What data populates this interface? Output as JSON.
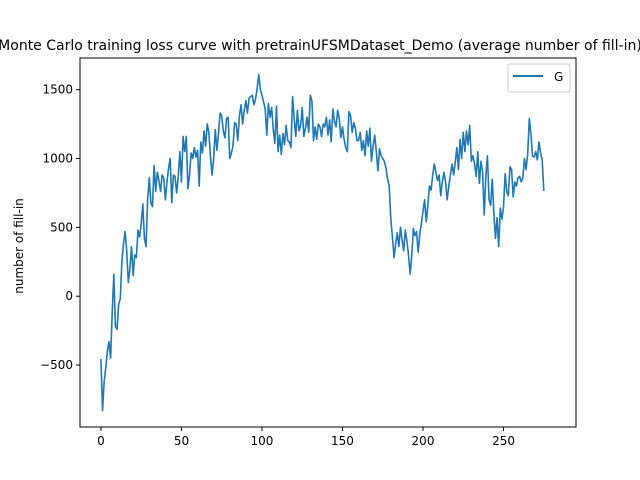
{
  "chart_data": {
    "type": "line",
    "title": "Monte Carlo training loss curve with pretrainUFSMDataset_Demo (average number of fill-in)",
    "xlabel": "",
    "ylabel": "number of fill-in",
    "xlim": [
      -13,
      295
    ],
    "ylim": [
      -950,
      1730
    ],
    "xticks": [
      0,
      50,
      100,
      150,
      200,
      250
    ],
    "yticks": [
      -500,
      0,
      500,
      1000,
      1500
    ],
    "legend_position": "top-right",
    "grid": false,
    "series": [
      {
        "name": "G",
        "color": "#1f77b4",
        "points": [
          [
            0,
            -460
          ],
          [
            1,
            -830
          ],
          [
            2,
            -620
          ],
          [
            3,
            -520
          ],
          [
            4,
            -400
          ],
          [
            5,
            -330
          ],
          [
            6,
            -450
          ],
          [
            7,
            -120
          ],
          [
            8,
            160
          ],
          [
            9,
            -220
          ],
          [
            10,
            -240
          ],
          [
            11,
            -60
          ],
          [
            12,
            -20
          ],
          [
            13,
            250
          ],
          [
            14,
            380
          ],
          [
            15,
            470
          ],
          [
            16,
            330
          ],
          [
            17,
            100
          ],
          [
            18,
            200
          ],
          [
            19,
            360
          ],
          [
            20,
            150
          ],
          [
            21,
            300
          ],
          [
            22,
            280
          ],
          [
            23,
            480
          ],
          [
            24,
            430
          ],
          [
            25,
            520
          ],
          [
            26,
            670
          ],
          [
            27,
            420
          ],
          [
            28,
            360
          ],
          [
            29,
            700
          ],
          [
            30,
            860
          ],
          [
            31,
            680
          ],
          [
            32,
            650
          ],
          [
            33,
            950
          ],
          [
            34,
            760
          ],
          [
            35,
            900
          ],
          [
            36,
            840
          ],
          [
            37,
            760
          ],
          [
            38,
            880
          ],
          [
            39,
            860
          ],
          [
            40,
            700
          ],
          [
            41,
            830
          ],
          [
            42,
            930
          ],
          [
            43,
            1000
          ],
          [
            44,
            680
          ],
          [
            45,
            880
          ],
          [
            46,
            870
          ],
          [
            47,
            750
          ],
          [
            48,
            870
          ],
          [
            49,
            1050
          ],
          [
            50,
            830
          ],
          [
            51,
            1160
          ],
          [
            52,
            1050
          ],
          [
            53,
            1160
          ],
          [
            54,
            780
          ],
          [
            55,
            880
          ],
          [
            56,
            1040
          ],
          [
            57,
            1000
          ],
          [
            58,
            1080
          ],
          [
            59,
            1010
          ],
          [
            60,
            1060
          ],
          [
            61,
            800
          ],
          [
            62,
            1120
          ],
          [
            63,
            1040
          ],
          [
            64,
            1200
          ],
          [
            65,
            1090
          ],
          [
            66,
            1250
          ],
          [
            67,
            1190
          ],
          [
            68,
            1020
          ],
          [
            69,
            880
          ],
          [
            70,
            1000
          ],
          [
            71,
            1210
          ],
          [
            72,
            1060
          ],
          [
            73,
            1180
          ],
          [
            74,
            1330
          ],
          [
            75,
            1310
          ],
          [
            76,
            1200
          ],
          [
            77,
            1150
          ],
          [
            78,
            1290
          ],
          [
            79,
            1300
          ],
          [
            80,
            1000
          ],
          [
            81,
            1040
          ],
          [
            82,
            1090
          ],
          [
            83,
            1260
          ],
          [
            84,
            1250
          ],
          [
            85,
            1130
          ],
          [
            86,
            1310
          ],
          [
            87,
            1390
          ],
          [
            88,
            1250
          ],
          [
            89,
            1350
          ],
          [
            90,
            1420
          ],
          [
            91,
            1330
          ],
          [
            92,
            1440
          ],
          [
            93,
            1450
          ],
          [
            94,
            1460
          ],
          [
            95,
            1390
          ],
          [
            96,
            1430
          ],
          [
            97,
            1510
          ],
          [
            98,
            1610
          ],
          [
            99,
            1500
          ],
          [
            100,
            1460
          ],
          [
            101,
            1410
          ],
          [
            102,
            1360
          ],
          [
            103,
            1170
          ],
          [
            104,
            1400
          ],
          [
            105,
            1300
          ],
          [
            106,
            1370
          ],
          [
            107,
            1210
          ],
          [
            108,
            1110
          ],
          [
            109,
            1380
          ],
          [
            110,
            1050
          ],
          [
            111,
            1170
          ],
          [
            112,
            1030
          ],
          [
            113,
            1180
          ],
          [
            114,
            1100
          ],
          [
            115,
            1240
          ],
          [
            116,
            1130
          ],
          [
            117,
            1120
          ],
          [
            118,
            1080
          ],
          [
            119,
            1450
          ],
          [
            120,
            1290
          ],
          [
            121,
            1160
          ],
          [
            122,
            1350
          ],
          [
            123,
            1200
          ],
          [
            124,
            1240
          ],
          [
            125,
            1370
          ],
          [
            126,
            1160
          ],
          [
            127,
            1220
          ],
          [
            128,
            1300
          ],
          [
            129,
            1190
          ],
          [
            130,
            1460
          ],
          [
            131,
            1420
          ],
          [
            132,
            1130
          ],
          [
            133,
            1230
          ],
          [
            134,
            1140
          ],
          [
            135,
            1250
          ],
          [
            136,
            1230
          ],
          [
            137,
            1160
          ],
          [
            138,
            1250
          ],
          [
            139,
            1230
          ],
          [
            140,
            1300
          ],
          [
            141,
            1170
          ],
          [
            142,
            1280
          ],
          [
            143,
            1120
          ],
          [
            144,
            1360
          ],
          [
            145,
            1270
          ],
          [
            146,
            1230
          ],
          [
            147,
            1350
          ],
          [
            148,
            1290
          ],
          [
            149,
            1150
          ],
          [
            150,
            1230
          ],
          [
            151,
            1140
          ],
          [
            152,
            1080
          ],
          [
            153,
            1050
          ],
          [
            154,
            1340
          ],
          [
            155,
            1310
          ],
          [
            156,
            1190
          ],
          [
            157,
            1260
          ],
          [
            158,
            1220
          ],
          [
            159,
            1130
          ],
          [
            160,
            1130
          ],
          [
            161,
            1190
          ],
          [
            162,
            1060
          ],
          [
            163,
            1130
          ],
          [
            164,
            1020
          ],
          [
            165,
            1200
          ],
          [
            166,
            1090
          ],
          [
            167,
            1220
          ],
          [
            168,
            980
          ],
          [
            169,
            1090
          ],
          [
            170,
            1170
          ],
          [
            171,
            1050
          ],
          [
            172,
            910
          ],
          [
            173,
            1070
          ],
          [
            174,
            1020
          ],
          [
            175,
            1000
          ],
          [
            176,
            980
          ],
          [
            177,
            930
          ],
          [
            178,
            850
          ],
          [
            179,
            800
          ],
          [
            180,
            560
          ],
          [
            181,
            430
          ],
          [
            182,
            280
          ],
          [
            183,
            380
          ],
          [
            184,
            460
          ],
          [
            185,
            360
          ],
          [
            186,
            500
          ],
          [
            187,
            410
          ],
          [
            188,
            330
          ],
          [
            189,
            480
          ],
          [
            190,
            400
          ],
          [
            191,
            300
          ],
          [
            192,
            160
          ],
          [
            193,
            290
          ],
          [
            194,
            490
          ],
          [
            195,
            440
          ],
          [
            196,
            470
          ],
          [
            197,
            320
          ],
          [
            198,
            450
          ],
          [
            199,
            530
          ],
          [
            200,
            620
          ],
          [
            201,
            700
          ],
          [
            202,
            540
          ],
          [
            203,
            660
          ],
          [
            204,
            800
          ],
          [
            205,
            770
          ],
          [
            206,
            880
          ],
          [
            207,
            960
          ],
          [
            208,
            900
          ],
          [
            209,
            840
          ],
          [
            210,
            880
          ],
          [
            211,
            730
          ],
          [
            212,
            830
          ],
          [
            213,
            900
          ],
          [
            214,
            830
          ],
          [
            215,
            700
          ],
          [
            216,
            800
          ],
          [
            217,
            880
          ],
          [
            218,
            960
          ],
          [
            219,
            880
          ],
          [
            220,
            970
          ],
          [
            221,
            1080
          ],
          [
            222,
            920
          ],
          [
            223,
            1140
          ],
          [
            224,
            1000
          ],
          [
            225,
            1190
          ],
          [
            226,
            1050
          ],
          [
            227,
            1200
          ],
          [
            228,
            1100
          ],
          [
            229,
            1240
          ],
          [
            230,
            980
          ],
          [
            231,
            1020
          ],
          [
            232,
            960
          ],
          [
            233,
            870
          ],
          [
            234,
            1050
          ],
          [
            235,
            820
          ],
          [
            236,
            980
          ],
          [
            237,
            900
          ],
          [
            238,
            590
          ],
          [
            239,
            870
          ],
          [
            240,
            1020
          ],
          [
            241,
            700
          ],
          [
            242,
            660
          ],
          [
            243,
            850
          ],
          [
            244,
            600
          ],
          [
            245,
            420
          ],
          [
            246,
            570
          ],
          [
            247,
            360
          ],
          [
            248,
            640
          ],
          [
            249,
            560
          ],
          [
            250,
            650
          ],
          [
            251,
            890
          ],
          [
            252,
            760
          ],
          [
            253,
            730
          ],
          [
            254,
            940
          ],
          [
            255,
            920
          ],
          [
            256,
            720
          ],
          [
            257,
            830
          ],
          [
            258,
            800
          ],
          [
            259,
            860
          ],
          [
            260,
            870
          ],
          [
            261,
            830
          ],
          [
            262,
            860
          ],
          [
            263,
            1000
          ],
          [
            264,
            920
          ],
          [
            265,
            1030
          ],
          [
            266,
            1290
          ],
          [
            267,
            1180
          ],
          [
            268,
            1020
          ],
          [
            269,
            1010
          ],
          [
            270,
            1050
          ],
          [
            271,
            990
          ],
          [
            272,
            1120
          ],
          [
            273,
            1040
          ],
          [
            274,
            990
          ],
          [
            275,
            770
          ]
        ]
      }
    ]
  }
}
